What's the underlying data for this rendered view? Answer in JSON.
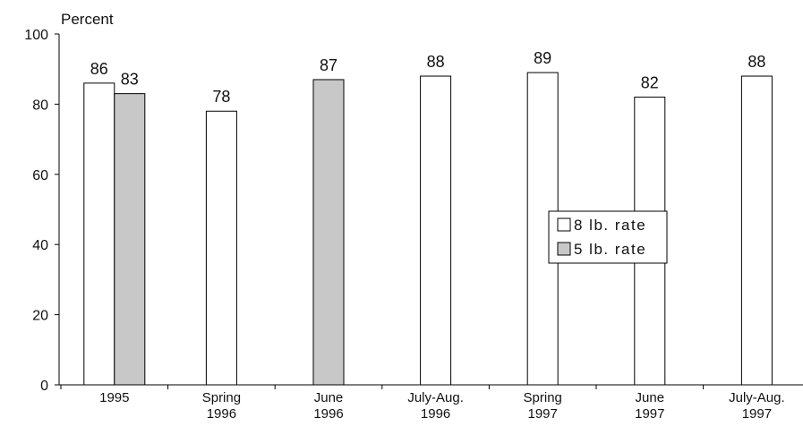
{
  "chart_data": {
    "type": "bar",
    "ylabel": "Percent",
    "ylim": [
      0,
      100
    ],
    "yticks": [
      0,
      20,
      40,
      60,
      80,
      100
    ],
    "grid": false,
    "legend_position": "center-right",
    "categories": [
      [
        "1995"
      ],
      [
        "Spring",
        "1996"
      ],
      [
        "June",
        "1996"
      ],
      [
        "July-Aug.",
        "1996"
      ],
      [
        "Spring",
        "1997"
      ],
      [
        "June",
        "1997"
      ],
      [
        "July-Aug.",
        "1997"
      ]
    ],
    "series": [
      {
        "name": "8 lb. rate",
        "color": "#ffffff",
        "values": [
          86,
          78,
          null,
          88,
          89,
          82,
          88
        ],
        "labels": [
          "86",
          "78",
          null,
          "88",
          "89",
          "82",
          "88"
        ]
      },
      {
        "name": "5 lb. rate",
        "color": "#c8c8c8",
        "values": [
          83,
          null,
          87,
          null,
          null,
          null,
          null
        ],
        "labels": [
          "83",
          null,
          "87",
          null,
          null,
          null,
          null
        ]
      }
    ]
  }
}
